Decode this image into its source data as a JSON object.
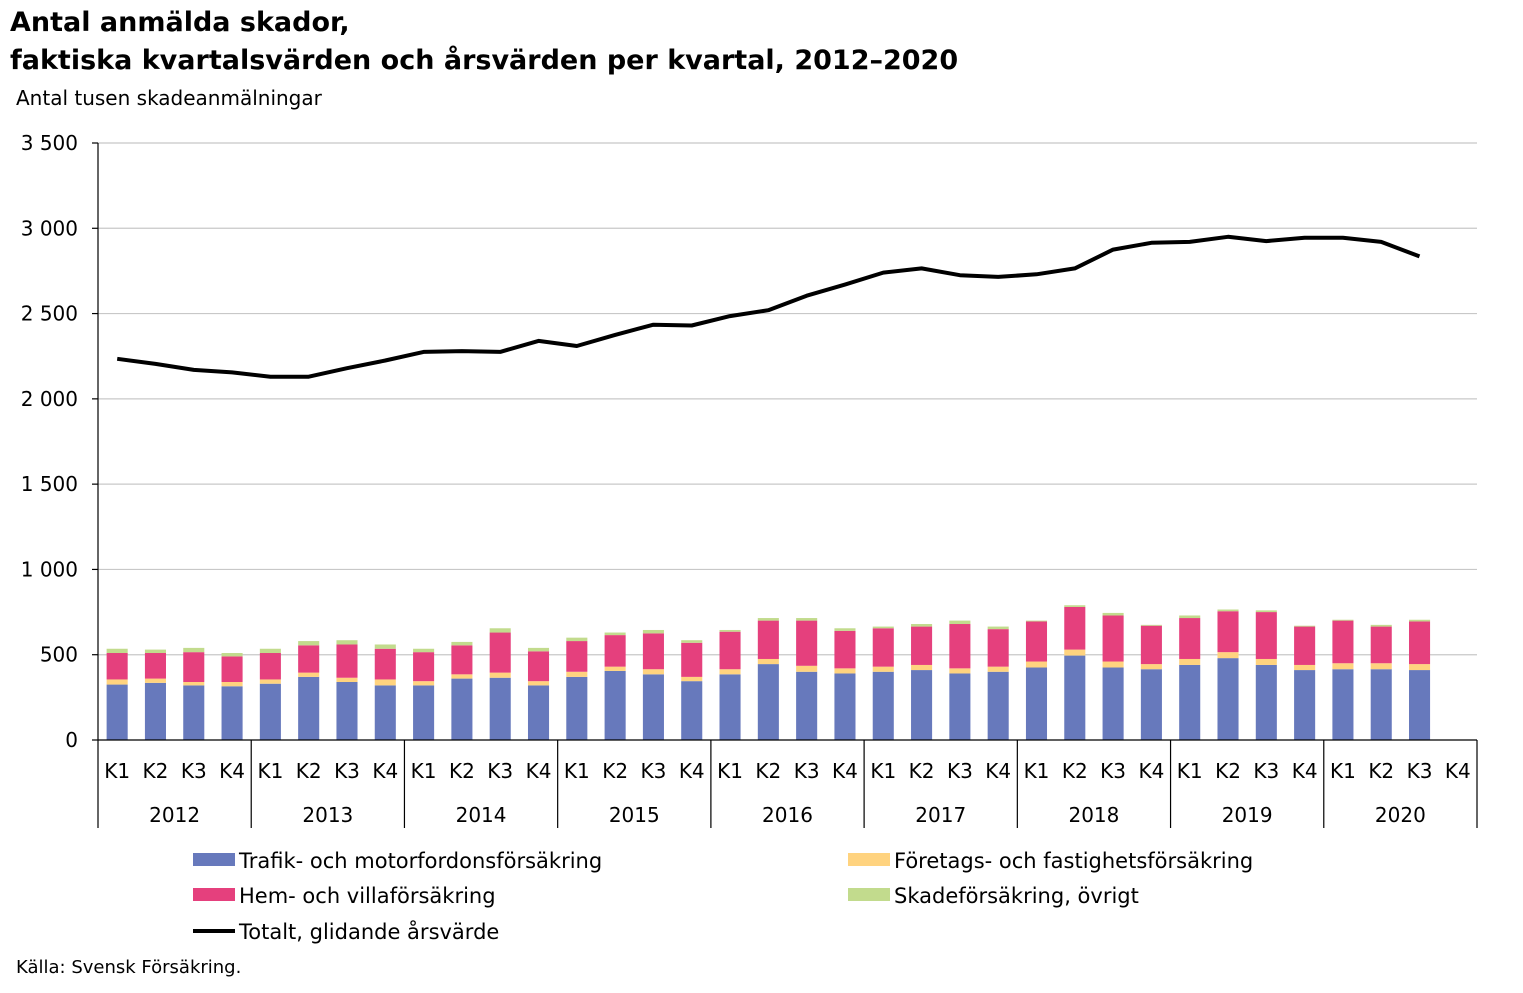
{
  "title_line1": "Antal anmälda skador,",
  "title_line2": "faktiska kvartalsvärden och årsvärden per kvartal, 2012–2020",
  "source": "Källa: Svensk Försäkring.",
  "chart_data": {
    "type": "bar",
    "stacked": true,
    "ylabel": "Antal tusen skadeanmälningar",
    "ylim": [
      0,
      3500
    ],
    "yticks": [
      0,
      500,
      1000,
      1500,
      2000,
      2500,
      3000,
      3500
    ],
    "ytick_labels": [
      "0",
      "500",
      "1 000",
      "1 500",
      "2 000",
      "2 500",
      "3 000",
      "3 500"
    ],
    "grid": true,
    "legend_position": "bottom",
    "years": [
      "2012",
      "2013",
      "2014",
      "2015",
      "2016",
      "2017",
      "2018",
      "2019",
      "2020"
    ],
    "quarters": [
      "K1",
      "K2",
      "K3",
      "K4"
    ],
    "series": [
      {
        "name": "Trafik- och motorfordonsförsäkring",
        "color": "#6779BC",
        "kind": "bar",
        "values": [
          325,
          335,
          320,
          315,
          330,
          370,
          340,
          320,
          320,
          360,
          365,
          320,
          370,
          405,
          385,
          345,
          385,
          445,
          400,
          390,
          400,
          410,
          390,
          400,
          425,
          495,
          425,
          415,
          440,
          480,
          440,
          410,
          415,
          415,
          410,
          null
        ]
      },
      {
        "name": "Företags- och fastighetsförsäkring",
        "color": "#FFD37F",
        "kind": "bar",
        "values": [
          30,
          25,
          20,
          25,
          25,
          25,
          25,
          35,
          25,
          25,
          30,
          25,
          30,
          25,
          30,
          25,
          30,
          30,
          35,
          30,
          30,
          30,
          30,
          30,
          35,
          35,
          35,
          30,
          35,
          35,
          35,
          30,
          35,
          35,
          35,
          null
        ]
      },
      {
        "name": "Hem- och villaförsäkring",
        "color": "#E5407D",
        "kind": "bar",
        "values": [
          155,
          150,
          175,
          150,
          155,
          160,
          195,
          180,
          170,
          170,
          235,
          175,
          180,
          185,
          210,
          200,
          220,
          225,
          265,
          220,
          225,
          225,
          260,
          220,
          235,
          250,
          270,
          225,
          240,
          240,
          275,
          225,
          250,
          215,
          250,
          null
        ]
      },
      {
        "name": "Skadeförsäkring, övrigt",
        "color": "#C2DB8D",
        "kind": "bar",
        "values": [
          25,
          20,
          25,
          20,
          25,
          25,
          25,
          25,
          20,
          20,
          25,
          20,
          20,
          15,
          20,
          15,
          10,
          15,
          15,
          15,
          10,
          15,
          20,
          15,
          5,
          10,
          15,
          5,
          15,
          10,
          10,
          5,
          5,
          10,
          10,
          null
        ]
      },
      {
        "name": "Totalt, glidande årsvärde",
        "color": "#000000",
        "kind": "line",
        "values": [
          2235,
          2205,
          2170,
          2155,
          2130,
          2130,
          2180,
          2225,
          2275,
          2280,
          2275,
          2340,
          2310,
          2375,
          2435,
          2430,
          2485,
          2520,
          2605,
          2670,
          2740,
          2765,
          2725,
          2715,
          2730,
          2765,
          2875,
          2915,
          2920,
          2950,
          2925,
          2945,
          2945,
          2920,
          2835,
          null
        ]
      }
    ]
  }
}
